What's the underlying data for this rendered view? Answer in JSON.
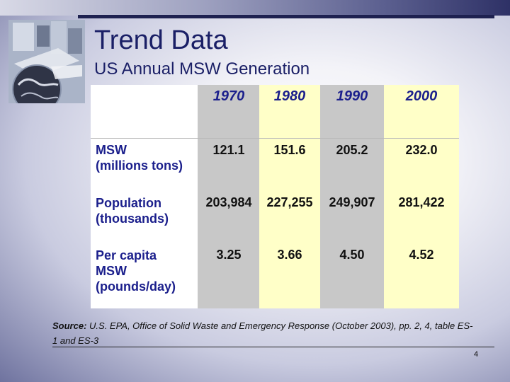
{
  "slide": {
    "title": "Trend Data",
    "subtitle": "US Annual MSW Generation",
    "page_number": "4"
  },
  "table": {
    "years": [
      "1970",
      "1980",
      "1990",
      "2000"
    ],
    "rows": [
      {
        "label_lines": [
          "MSW",
          "(millions tons)"
        ],
        "values": [
          "121.1",
          "151.6",
          "205.2",
          "232.0"
        ]
      },
      {
        "label_lines": [
          "Population",
          "(thousands)"
        ],
        "values": [
          "203,984",
          "227,255",
          "249,907",
          "281,422"
        ]
      },
      {
        "label_lines": [
          "Per capita",
          "MSW",
          "(pounds/day)"
        ],
        "values": [
          "3.25",
          "3.66",
          "4.50",
          "4.52"
        ]
      }
    ]
  },
  "source": {
    "label": "Source:",
    "text": " U.S. EPA, Office of Solid Waste and Emergency Response (October 2003), pp. 2, 4, table ES-1 and ES-3"
  },
  "colors": {
    "title": "#1a1f66",
    "header_text": "#1b1f8c",
    "gray_column": "#c8c8c8",
    "yellow_column": "#ffffc8"
  }
}
